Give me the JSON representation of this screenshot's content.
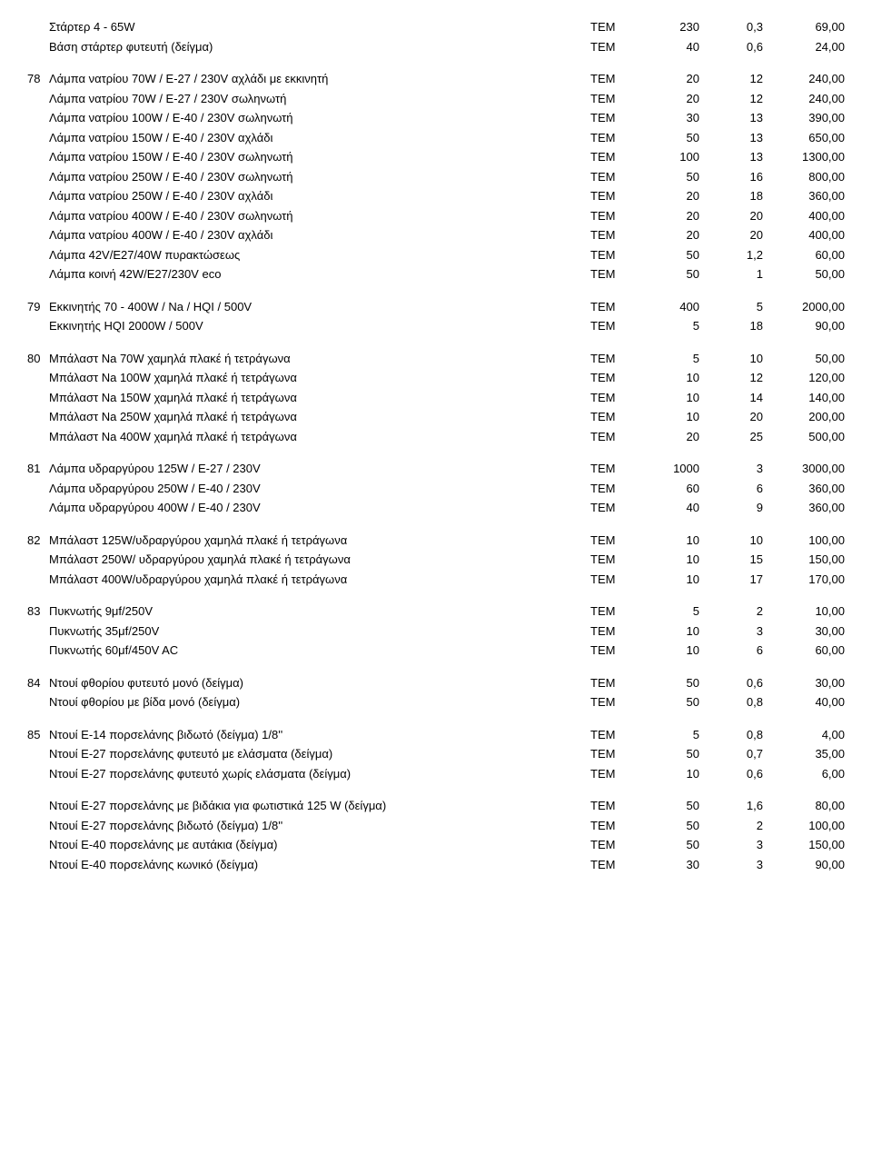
{
  "groups": [
    {
      "num": "",
      "items": [
        {
          "desc": "Στάρτερ 4 - 65W",
          "unit": "ΤΕΜ",
          "q1": "230",
          "q2": "0,3",
          "q3": "69,00"
        },
        {
          "desc": "Βάση στάρτερ φυτευτή (δείγμα)",
          "unit": "ΤΕΜ",
          "q1": "40",
          "q2": "0,6",
          "q3": "24,00"
        }
      ]
    },
    {
      "num": "78",
      "items": [
        {
          "desc": "Λάμπα νατρίου 70W / Ε-27 / 230V αχλάδι με εκκινητή",
          "unit": "ΤΕΜ",
          "q1": "20",
          "q2": "12",
          "q3": "240,00"
        },
        {
          "desc": "Λάμπα νατρίου 70W / Ε-27 / 230V σωληνωτή",
          "unit": "ΤΕΜ",
          "q1": "20",
          "q2": "12",
          "q3": "240,00"
        },
        {
          "desc": "Λάμπα νατρίου 100W / Ε-40 / 230V σωληνωτή",
          "unit": "ΤΕΜ",
          "q1": "30",
          "q2": "13",
          "q3": "390,00"
        },
        {
          "desc": "Λάμπα νατρίου 150W / Ε-40 / 230V αχλάδι",
          "unit": "ΤΕΜ",
          "q1": "50",
          "q2": "13",
          "q3": "650,00"
        },
        {
          "desc": "Λάμπα νατρίου 150W / Ε-40 / 230V σωληνωτή",
          "unit": "ΤΕΜ",
          "q1": "100",
          "q2": "13",
          "q3": "1300,00"
        },
        {
          "desc": "Λάμπα νατρίου 250W / Ε-40 / 230V σωληνωτή",
          "unit": "ΤΕΜ",
          "q1": "50",
          "q2": "16",
          "q3": "800,00"
        },
        {
          "desc": "Λάμπα νατρίου 250W / Ε-40 / 230V αχλάδι",
          "unit": "ΤΕΜ",
          "q1": "20",
          "q2": "18",
          "q3": "360,00"
        },
        {
          "desc": "Λάμπα νατρίου 400W / Ε-40 / 230V σωληνωτή",
          "unit": "ΤΕΜ",
          "q1": "20",
          "q2": "20",
          "q3": "400,00"
        },
        {
          "desc": "Λάμπα νατρίου 400W / Ε-40 / 230V αχλάδι",
          "unit": "ΤΕΜ",
          "q1": "20",
          "q2": "20",
          "q3": "400,00"
        },
        {
          "desc": "Λάμπα 42V/Ε27/40W πυρακτώσεως",
          "unit": "ΤΕΜ",
          "q1": "50",
          "q2": "1,2",
          "q3": "60,00"
        },
        {
          "desc": "Λάμπα κοινή 42W/Ε27/230V eco",
          "unit": "ΤΕΜ",
          "q1": "50",
          "q2": "1",
          "q3": "50,00"
        }
      ]
    },
    {
      "num": "79",
      "items": [
        {
          "desc": "Εκκινητής 70 - 400W / Na / HQI / 500V",
          "unit": "ΤΕΜ",
          "q1": "400",
          "q2": "5",
          "q3": "2000,00"
        },
        {
          "desc": "Εκκινητής HQI 2000W / 500V",
          "unit": "ΤΕΜ",
          "q1": "5",
          "q2": "18",
          "q3": "90,00"
        }
      ]
    },
    {
      "num": "80",
      "items": [
        {
          "desc": "Μπάλαστ Na 70W χαμηλά πλακέ ή τετράγωνα",
          "unit": "ΤΕΜ",
          "q1": "5",
          "q2": "10",
          "q3": "50,00"
        },
        {
          "desc": "Μπάλαστ Na 100W χαμηλά πλακέ ή τετράγωνα",
          "unit": "ΤΕΜ",
          "q1": "10",
          "q2": "12",
          "q3": "120,00"
        },
        {
          "desc": "Μπάλαστ Na 150W χαμηλά πλακέ ή τετράγωνα",
          "unit": "ΤΕΜ",
          "q1": "10",
          "q2": "14",
          "q3": "140,00"
        },
        {
          "desc": "Μπάλαστ Na 250W χαμηλά πλακέ ή τετράγωνα",
          "unit": "ΤΕΜ",
          "q1": "10",
          "q2": "20",
          "q3": "200,00"
        },
        {
          "desc": "Μπάλαστ Na 400W χαμηλά πλακέ ή τετράγωνα",
          "unit": "ΤΕΜ",
          "q1": "20",
          "q2": "25",
          "q3": "500,00"
        }
      ]
    },
    {
      "num": "81",
      "items": [
        {
          "desc": "Λάμπα υδραργύρου 125W / Ε-27 / 230V",
          "unit": "ΤΕΜ",
          "q1": "1000",
          "q2": "3",
          "q3": "3000,00"
        },
        {
          "desc": "Λάμπα υδραργύρου 250W / Ε-40 / 230V",
          "unit": "ΤΕΜ",
          "q1": "60",
          "q2": "6",
          "q3": "360,00"
        },
        {
          "desc": "Λάμπα υδραργύρου 400W / Ε-40 / 230V",
          "unit": "ΤΕΜ",
          "q1": "40",
          "q2": "9",
          "q3": "360,00"
        }
      ]
    },
    {
      "num": "82",
      "items": [
        {
          "desc": "Μπάλαστ 125W/υδραργύρου χαμηλά πλακέ ή τετράγωνα",
          "unit": "ΤΕΜ",
          "q1": "10",
          "q2": "10",
          "q3": "100,00"
        },
        {
          "desc": "Μπάλαστ 250W/ υδραργύρου χαμηλά πλακέ ή τετράγωνα",
          "unit": "ΤΕΜ",
          "q1": "10",
          "q2": "15",
          "q3": "150,00"
        },
        {
          "desc": "Μπάλαστ 400W/υδραργύρου χαμηλά πλακέ ή τετράγωνα",
          "unit": "ΤΕΜ",
          "q1": "10",
          "q2": "17",
          "q3": "170,00"
        }
      ]
    },
    {
      "num": "83",
      "items": [
        {
          "desc": "Πυκνωτής 9μf/250V",
          "unit": "ΤΕΜ",
          "q1": "5",
          "q2": "2",
          "q3": "10,00"
        },
        {
          "desc": "Πυκνωτής 35μf/250V",
          "unit": "ΤΕΜ",
          "q1": "10",
          "q2": "3",
          "q3": "30,00"
        },
        {
          "desc": "Πυκνωτής 60μf/450V AC",
          "unit": "ΤΕΜ",
          "q1": "10",
          "q2": "6",
          "q3": "60,00"
        }
      ]
    },
    {
      "num": "84",
      "items": [
        {
          "desc": "Ντουί φθορίου φυτευτό μονό (δείγμα)",
          "unit": "ΤΕΜ",
          "q1": "50",
          "q2": "0,6",
          "q3": "30,00"
        },
        {
          "desc": "Ντουί φθορίου με βίδα μονό (δείγμα)",
          "unit": "ΤΕΜ",
          "q1": "50",
          "q2": "0,8",
          "q3": "40,00"
        }
      ]
    },
    {
      "num": "85",
      "items": [
        {
          "desc": "Ντουί Ε-14 πορσελάνης βιδωτό (δείγμα) 1/8''",
          "unit": "ΤΕΜ",
          "q1": "5",
          "q2": "0,8",
          "q3": "4,00"
        },
        {
          "desc": "Ντουί Ε-27 πορσελάνης φυτευτό με ελάσματα (δείγμα)",
          "unit": "ΤΕΜ",
          "q1": "50",
          "q2": "0,7",
          "q3": "35,00"
        },
        {
          "desc": "Ντουί Ε-27 πορσελάνης φυτευτό χωρίς ελάσματα (δείγμα)",
          "unit": "ΤΕΜ",
          "q1": "10",
          "q2": "0,6",
          "q3": "6,00"
        }
      ]
    },
    {
      "num": "",
      "items": [
        {
          "desc": "Ντουί Ε-27 πορσελάνης με βιδάκια για φωτιστικά 125 W (δείγμα)",
          "unit": "ΤΕΜ",
          "q1": "50",
          "q2": "1,6",
          "q3": "80,00"
        },
        {
          "desc": "Ντουί Ε-27 πορσελάνης βιδωτό (δείγμα) 1/8''",
          "unit": "ΤΕΜ",
          "q1": "50",
          "q2": "2",
          "q3": "100,00"
        },
        {
          "desc": "Ντουί Ε-40 πορσελάνης με αυτάκια (δείγμα)",
          "unit": "ΤΕΜ",
          "q1": "50",
          "q2": "3",
          "q3": "150,00"
        },
        {
          "desc": "Ντουί Ε-40 πορσελάνης κωνικό (δείγμα)",
          "unit": "ΤΕΜ",
          "q1": "30",
          "q2": "3",
          "q3": "90,00"
        }
      ]
    }
  ]
}
